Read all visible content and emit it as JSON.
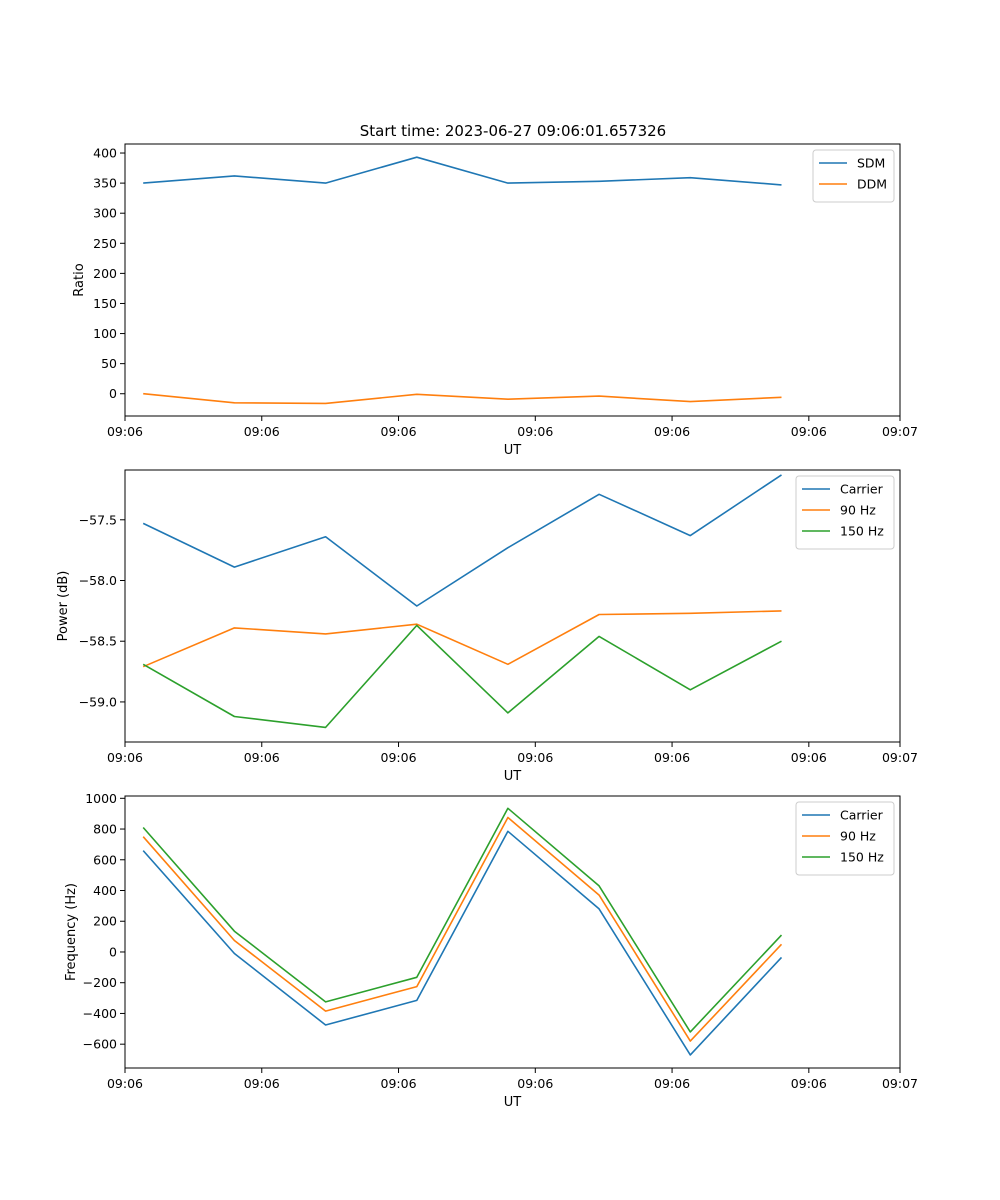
{
  "figure_title": "Start time: 2023-06-27 09:06:01.657326",
  "chart_data": [
    {
      "type": "line",
      "xlabel": "UT",
      "ylabel": "Ratio",
      "x": [
        1,
        2,
        3,
        4,
        5,
        6,
        7,
        8
      ],
      "xlim": [
        0.8,
        9.3
      ],
      "xticks": [
        {
          "v": 0.8,
          "label": "09:06"
        },
        {
          "v": 2.3,
          "label": "09:06"
        },
        {
          "v": 3.8,
          "label": "09:06"
        },
        {
          "v": 5.3,
          "label": "09:06"
        },
        {
          "v": 6.8,
          "label": "09:06"
        },
        {
          "v": 8.3,
          "label": "09:06"
        },
        {
          "v": 9.3,
          "label": "09:07"
        }
      ],
      "ylim": [
        -37,
        415
      ],
      "yticks": [
        {
          "v": 0,
          "label": "0"
        },
        {
          "v": 50,
          "label": "50"
        },
        {
          "v": 100,
          "label": "100"
        },
        {
          "v": 150,
          "label": "150"
        },
        {
          "v": 200,
          "label": "200"
        },
        {
          "v": 250,
          "label": "250"
        },
        {
          "v": 300,
          "label": "300"
        },
        {
          "v": 350,
          "label": "350"
        },
        {
          "v": 400,
          "label": "400"
        }
      ],
      "legend": "top-right",
      "series": [
        {
          "name": "SDM",
          "color": "#1f77b4",
          "values": [
            350,
            362,
            350,
            393,
            350,
            353,
            359,
            347
          ]
        },
        {
          "name": "DDM",
          "color": "#ff7f0e",
          "values": [
            0,
            -15,
            -16,
            -1,
            -9,
            -4,
            -13,
            -6
          ]
        }
      ]
    },
    {
      "type": "line",
      "xlabel": "UT",
      "ylabel": "Power (dB)",
      "x": [
        1,
        2,
        3,
        4,
        5,
        6,
        7,
        8
      ],
      "xlim": [
        0.8,
        9.3
      ],
      "xticks": [
        {
          "v": 0.8,
          "label": "09:06"
        },
        {
          "v": 2.3,
          "label": "09:06"
        },
        {
          "v": 3.8,
          "label": "09:06"
        },
        {
          "v": 5.3,
          "label": "09:06"
        },
        {
          "v": 6.8,
          "label": "09:06"
        },
        {
          "v": 8.3,
          "label": "09:06"
        },
        {
          "v": 9.3,
          "label": "09:07"
        }
      ],
      "ylim": [
        -59.33,
        -57.09
      ],
      "yticks": [
        {
          "v": -59.0,
          "label": "−59.0"
        },
        {
          "v": -58.5,
          "label": "−58.5"
        },
        {
          "v": -58.0,
          "label": "−58.0"
        },
        {
          "v": -57.5,
          "label": "−57.5"
        }
      ],
      "legend": "top-right",
      "series": [
        {
          "name": "Carrier",
          "color": "#1f77b4",
          "values": [
            -57.53,
            -57.89,
            -57.64,
            -58.21,
            -57.73,
            -57.29,
            -57.63,
            -57.13
          ]
        },
        {
          "name": "90 Hz",
          "color": "#ff7f0e",
          "values": [
            -58.71,
            -58.39,
            -58.44,
            -58.36,
            -58.69,
            -58.28,
            -58.27,
            -58.25
          ]
        },
        {
          "name": "150 Hz",
          "color": "#2ca02c",
          "values": [
            -58.69,
            -59.12,
            -59.21,
            -58.37,
            -59.09,
            -58.46,
            -58.9,
            -58.5
          ]
        }
      ]
    },
    {
      "type": "line",
      "xlabel": "UT",
      "ylabel": "Frequency (Hz)",
      "x": [
        1,
        2,
        3,
        4,
        5,
        6,
        7,
        8
      ],
      "xlim": [
        0.8,
        9.3
      ],
      "xticks": [
        {
          "v": 0.8,
          "label": "09:06"
        },
        {
          "v": 2.3,
          "label": "09:06"
        },
        {
          "v": 3.8,
          "label": "09:06"
        },
        {
          "v": 5.3,
          "label": "09:06"
        },
        {
          "v": 6.8,
          "label": "09:06"
        },
        {
          "v": 8.3,
          "label": "09:06"
        },
        {
          "v": 9.3,
          "label": "09:07"
        }
      ],
      "ylim": [
        -755,
        1015
      ],
      "yticks": [
        {
          "v": -600,
          "label": "−600"
        },
        {
          "v": -400,
          "label": "−400"
        },
        {
          "v": -200,
          "label": "−200"
        },
        {
          "v": 0,
          "label": "0"
        },
        {
          "v": 200,
          "label": "200"
        },
        {
          "v": 400,
          "label": "400"
        },
        {
          "v": 600,
          "label": "600"
        },
        {
          "v": 800,
          "label": "800"
        },
        {
          "v": 1000,
          "label": "1000"
        }
      ],
      "legend": "top-right",
      "series": [
        {
          "name": "Carrier",
          "color": "#1f77b4",
          "values": [
            660,
            -10,
            -475,
            -315,
            785,
            280,
            -670,
            -35
          ]
        },
        {
          "name": "90 Hz",
          "color": "#ff7f0e",
          "values": [
            750,
            75,
            -385,
            -225,
            875,
            370,
            -580,
            50
          ]
        },
        {
          "name": "150 Hz",
          "color": "#2ca02c",
          "values": [
            810,
            135,
            -325,
            -165,
            935,
            430,
            -520,
            110
          ]
        }
      ]
    }
  ]
}
